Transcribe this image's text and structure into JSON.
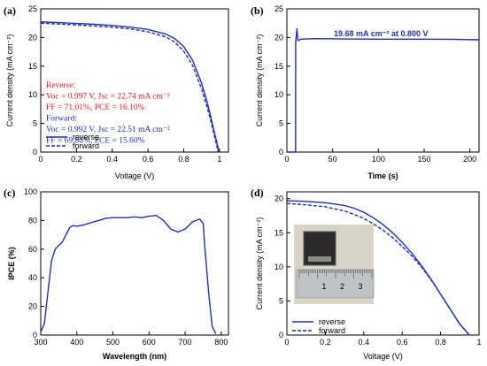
{
  "colors": {
    "series": "#1f2fb8",
    "reverse_text": "#e0201c",
    "forward_text": "#1f2fb8"
  },
  "chart_data": [
    {
      "id": "a",
      "panel_label": "(a)",
      "type": "line",
      "xlabel": "Voltage (V)",
      "ylabel": "Current density (mA cm⁻²)",
      "xlim": [
        0,
        1.05
      ],
      "ylim": [
        0,
        25
      ],
      "xticks": [
        0,
        0.2,
        0.4,
        0.6,
        0.8,
        1
      ],
      "xtick_labels": [
        "0",
        "0.2",
        "0.4",
        "0.6",
        "0.8",
        "1"
      ],
      "yticks": [
        0,
        5,
        10,
        15,
        20,
        25
      ],
      "series": [
        {
          "name": "reverse",
          "dash": false,
          "x": [
            0,
            0.1,
            0.2,
            0.3,
            0.4,
            0.5,
            0.6,
            0.7,
            0.75,
            0.8,
            0.85,
            0.9,
            0.93,
            0.95,
            0.97,
            0.985,
            0.997
          ],
          "y": [
            22.74,
            22.6,
            22.45,
            22.3,
            22.1,
            21.8,
            21.4,
            20.6,
            19.8,
            18.4,
            16.0,
            12.0,
            8.8,
            6.3,
            3.6,
            1.7,
            0
          ]
        },
        {
          "name": "forward",
          "dash": true,
          "x": [
            0,
            0.1,
            0.2,
            0.3,
            0.4,
            0.5,
            0.6,
            0.7,
            0.75,
            0.8,
            0.85,
            0.9,
            0.93,
            0.95,
            0.97,
            0.98,
            0.992
          ],
          "y": [
            22.51,
            22.35,
            22.2,
            22.0,
            21.8,
            21.5,
            21.0,
            20.1,
            19.2,
            17.6,
            15.1,
            11.0,
            7.9,
            5.6,
            3.0,
            1.7,
            0
          ]
        }
      ],
      "annotations": [
        {
          "text": "Reverse:",
          "color": "reverse"
        },
        {
          "text": "Voc = 0.997 V, Jsc = 22.74 mA cm⁻²",
          "color": "reverse"
        },
        {
          "text": "FF = 71.01%, PCE = 16.10%",
          "color": "reverse"
        },
        {
          "text": "Forward:",
          "color": "forward"
        },
        {
          "text": "Voc = 0.992 V, Jsc = 22.51 mA cm⁻²",
          "color": "forward"
        },
        {
          "text": "FF = 69.86%, PCE = 15.60%",
          "color": "forward"
        }
      ],
      "legend": {
        "placement": "bottom-left",
        "entries": [
          "reverse",
          "forward"
        ]
      }
    },
    {
      "id": "b",
      "panel_label": "(b)",
      "type": "line",
      "xlabel": "Time (s)",
      "ylabel": "Current density (mA cm⁻²)",
      "xlim": [
        0,
        210
      ],
      "ylim": [
        0,
        25
      ],
      "xticks": [
        0,
        50,
        100,
        150,
        200
      ],
      "yticks": [
        0,
        5,
        10,
        15,
        20,
        25
      ],
      "series": [
        {
          "name": "",
          "x": [
            0,
            9.5,
            9.6,
            11,
            12,
            13,
            15,
            30,
            60,
            100,
            150,
            180,
            210
          ],
          "y": [
            0,
            0,
            19.2,
            21.6,
            19.5,
            19.5,
            19.7,
            19.8,
            19.75,
            19.7,
            19.7,
            19.68,
            19.6
          ]
        }
      ],
      "annotations": [
        {
          "text": "19.68 mA cm⁻² at 0.800 V",
          "color": "forward"
        }
      ]
    },
    {
      "id": "c",
      "panel_label": "(c)",
      "type": "line",
      "xlabel": "Wavelength (nm)",
      "ylabel": "IPCE (%)",
      "xlim": [
        300,
        820
      ],
      "ylim": [
        0,
        100
      ],
      "xticks": [
        300,
        400,
        500,
        600,
        700,
        800
      ],
      "yticks": [
        0,
        20,
        40,
        60,
        80,
        100
      ],
      "series": [
        {
          "name": "",
          "x": [
            300,
            310,
            320,
            330,
            340,
            360,
            380,
            390,
            400,
            420,
            440,
            460,
            480,
            500,
            520,
            540,
            560,
            580,
            600,
            620,
            640,
            660,
            680,
            700,
            720,
            740,
            750,
            755,
            765,
            775,
            785
          ],
          "y": [
            2,
            8,
            30,
            52,
            60,
            65,
            75,
            76.5,
            76,
            77,
            78.5,
            80,
            81.5,
            82,
            82,
            82,
            82.5,
            82,
            83,
            83.5,
            80,
            74,
            72,
            74,
            79,
            81,
            78,
            60,
            30,
            6,
            1
          ]
        }
      ]
    },
    {
      "id": "d",
      "panel_label": "(d)",
      "type": "line",
      "xlabel": "Voltage (V)",
      "ylabel": "Current density (mA cm⁻²)",
      "xlim": [
        0,
        1.0
      ],
      "ylim": [
        0,
        21
      ],
      "xticks": [
        0,
        0.2,
        0.4,
        0.6,
        0.8,
        1
      ],
      "xtick_labels": [
        "0",
        "0.2",
        "0.4",
        "0.6",
        "0.8",
        "1"
      ],
      "yticks": [
        0,
        5,
        10,
        15,
        20
      ],
      "series": [
        {
          "name": "reverse",
          "dash": false,
          "x": [
            0,
            0.1,
            0.2,
            0.3,
            0.35,
            0.4,
            0.45,
            0.5,
            0.55,
            0.6,
            0.65,
            0.7,
            0.75,
            0.8,
            0.85,
            0.9,
            0.95
          ],
          "y": [
            19.7,
            19.6,
            19.4,
            19.0,
            18.6,
            18.0,
            17.2,
            16.2,
            15.0,
            13.6,
            12.0,
            10.2,
            8.2,
            6.0,
            3.8,
            1.6,
            0
          ]
        },
        {
          "name": "forward",
          "dash": true,
          "x": [
            0,
            0.1,
            0.2,
            0.3,
            0.35,
            0.4,
            0.45,
            0.5,
            0.55,
            0.6,
            0.65,
            0.7,
            0.75,
            0.8,
            0.85,
            0.9,
            0.95
          ],
          "y": [
            19.3,
            19.1,
            18.8,
            18.2,
            17.7,
            17.1,
            16.3,
            15.4,
            14.3,
            13.0,
            11.6,
            10.0,
            8.1,
            6.0,
            3.8,
            1.6,
            0
          ]
        }
      ],
      "inset": {
        "ruler_labels": [
          "1",
          "2",
          "3"
        ]
      },
      "legend": {
        "placement": "bottom-left",
        "entries": [
          "reverse",
          "forward"
        ]
      }
    }
  ]
}
